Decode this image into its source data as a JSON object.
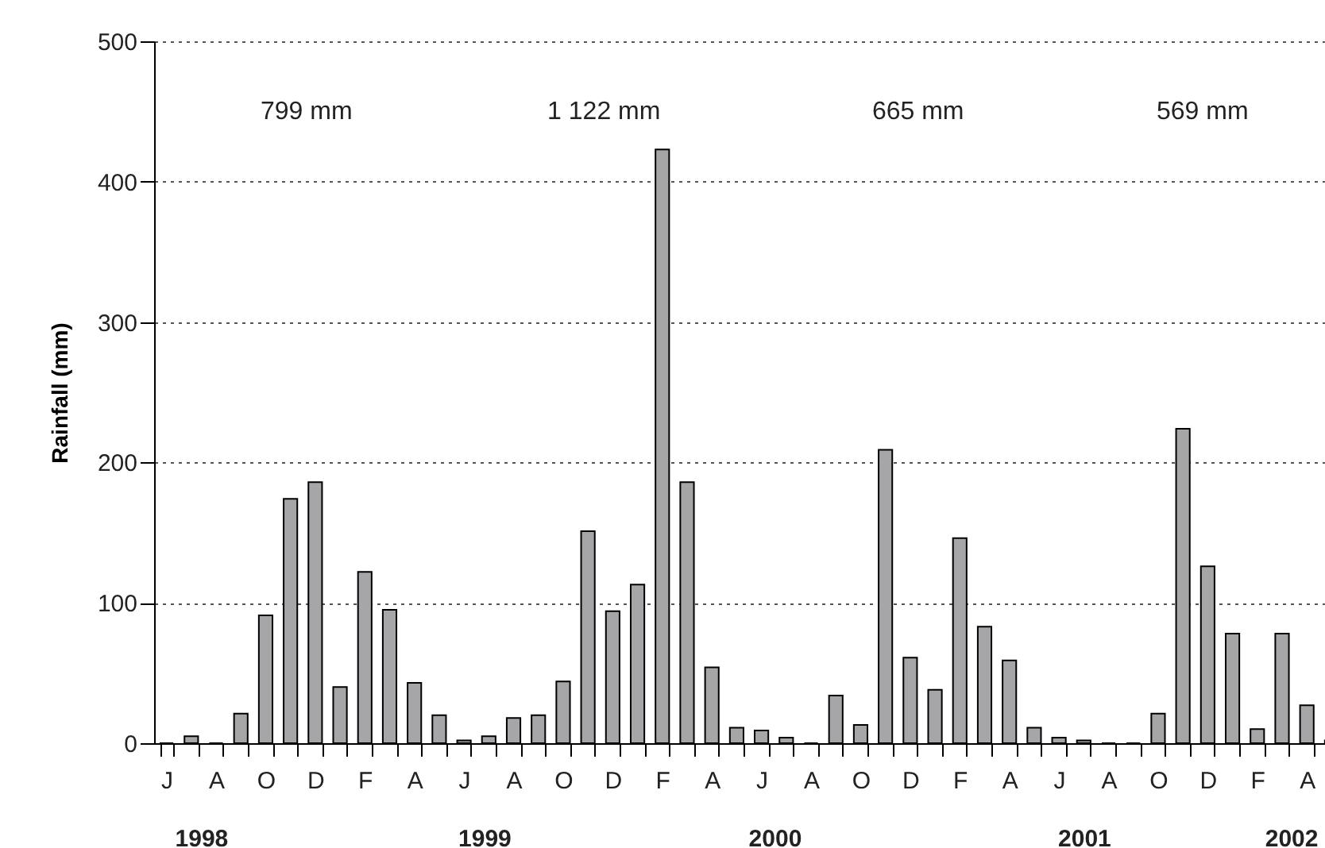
{
  "chart_data": {
    "type": "bar",
    "ylabel": "Rainfall (mm)",
    "categories": [
      "J",
      null,
      "A",
      null,
      "O",
      null,
      "D",
      null,
      "F",
      null,
      "A",
      null,
      "J",
      null,
      "A",
      null,
      "O",
      null,
      "D",
      null,
      "F",
      null,
      "A",
      null,
      "J",
      null,
      "A",
      null,
      "O",
      null,
      "D",
      null,
      "F",
      null,
      "A",
      null,
      "J",
      null,
      "A",
      null,
      "O",
      null,
      "D",
      null,
      "F",
      null,
      "A",
      null
    ],
    "values": [
      0,
      5,
      0,
      21,
      91,
      174,
      186,
      40,
      122,
      95,
      43,
      20,
      2,
      5,
      18,
      20,
      44,
      151,
      94,
      113,
      423,
      186,
      54,
      11,
      9,
      4,
      0,
      34,
      13,
      209,
      61,
      38,
      146,
      83,
      59,
      11,
      4,
      2,
      0,
      0,
      21,
      224,
      126,
      78,
      10,
      78,
      27,
      2
    ],
    "color": "#a6a6a8",
    "ylim": [
      0,
      500
    ],
    "yticks": [
      0,
      100,
      200,
      300,
      400,
      500
    ],
    "grid": "y",
    "annotations": [
      "799 mm",
      "1 122 mm",
      "665 mm",
      "569 mm",
      "1998",
      "1999",
      "2000",
      "2001",
      "2002"
    ]
  }
}
